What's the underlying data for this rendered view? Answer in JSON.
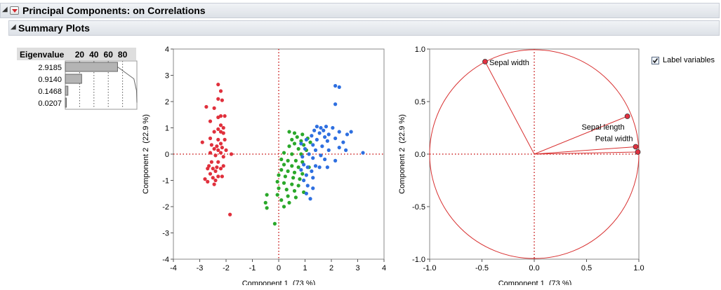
{
  "report": {
    "title": "Principal Components: on Correlations",
    "section_title": "Summary Plots"
  },
  "label_variables": {
    "label": "Label variables",
    "checked": true
  },
  "colors": {
    "setosa": "#e0303c",
    "versicolor": "#2aa82a",
    "virginica": "#2e6fe0",
    "refline": "#cc2222",
    "circle": "#d83030"
  },
  "chart_data": [
    {
      "type": "bar",
      "name": "eigenvalue-table",
      "header": "Eigenvalue",
      "scale_ticks": [
        "20",
        "40",
        "60",
        "80"
      ],
      "eigenvalues": [
        "2.9185",
        "0.9140",
        "0.1468",
        "0.0207"
      ],
      "percent": [
        72.96,
        22.85,
        3.67,
        0.52
      ],
      "cumulative_percent": [
        72.96,
        95.81,
        99.48,
        100
      ]
    },
    {
      "type": "scatter",
      "name": "score-plot",
      "xlabel": "Component 1  (73 %)",
      "ylabel": "Component 2  (22.9 %)",
      "xlim": [
        -4,
        4
      ],
      "ylim": [
        -4,
        4
      ],
      "xticks": [
        "-4",
        "-3",
        "-2",
        "-1",
        "0",
        "1",
        "2",
        "3",
        "4"
      ],
      "yticks": [
        "4",
        "3",
        "2",
        "1",
        "0",
        "-1",
        "-2",
        "-3",
        "-4"
      ],
      "series": [
        {
          "color": "setosa",
          "points": [
            [
              -2.3,
              2.65
            ],
            [
              -2.2,
              2.4
            ],
            [
              -2.3,
              2.1
            ],
            [
              -2.15,
              2.05
            ],
            [
              -2.75,
              1.8
            ],
            [
              -2.45,
              1.75
            ],
            [
              -2.2,
              1.45
            ],
            [
              -2.05,
              1.45
            ],
            [
              -2.3,
              1.4
            ],
            [
              -2.6,
              1.25
            ],
            [
              -2.2,
              1.1
            ],
            [
              -2.1,
              1.0
            ],
            [
              -2.3,
              0.95
            ],
            [
              -2.45,
              0.85
            ],
            [
              -2.2,
              0.85
            ],
            [
              -2.1,
              0.8
            ],
            [
              -2.6,
              0.6
            ],
            [
              -2.3,
              0.55
            ],
            [
              -2.05,
              0.55
            ],
            [
              -2.9,
              0.45
            ],
            [
              -2.55,
              0.35
            ],
            [
              -2.2,
              0.4
            ],
            [
              -2.35,
              0.3
            ],
            [
              -2.15,
              0.25
            ],
            [
              -2.45,
              0.2
            ],
            [
              -2.3,
              0.15
            ],
            [
              -2.0,
              0.15
            ],
            [
              -2.6,
              0.05
            ],
            [
              -2.2,
              0.05
            ],
            [
              -1.8,
              0.0
            ],
            [
              -2.4,
              -0.05
            ],
            [
              -2.1,
              -0.1
            ],
            [
              -2.55,
              -0.3
            ],
            [
              -2.3,
              -0.3
            ],
            [
              -2.65,
              -0.45
            ],
            [
              -2.35,
              -0.5
            ],
            [
              -2.1,
              -0.45
            ],
            [
              -2.7,
              -0.55
            ],
            [
              -2.5,
              -0.55
            ],
            [
              -2.2,
              -0.55
            ],
            [
              -2.4,
              -0.65
            ],
            [
              -2.6,
              -0.75
            ],
            [
              -2.3,
              -0.85
            ],
            [
              -2.15,
              -0.85
            ],
            [
              -2.5,
              -0.9
            ],
            [
              -2.8,
              -0.95
            ],
            [
              -2.4,
              -1.0
            ],
            [
              -2.7,
              -1.05
            ],
            [
              -2.45,
              -1.15
            ],
            [
              -1.85,
              -2.3
            ]
          ]
        },
        {
          "color": "versicolor",
          "points": [
            [
              0.4,
              0.85
            ],
            [
              0.6,
              0.8
            ],
            [
              0.9,
              0.75
            ],
            [
              0.7,
              0.65
            ],
            [
              1.1,
              0.6
            ],
            [
              0.5,
              0.55
            ],
            [
              0.85,
              0.5
            ],
            [
              1.2,
              0.45
            ],
            [
              0.6,
              0.4
            ],
            [
              0.95,
              0.35
            ],
            [
              0.4,
              0.3
            ],
            [
              0.75,
              0.2
            ],
            [
              1.05,
              0.15
            ],
            [
              0.2,
              0.05
            ],
            [
              0.5,
              0.0
            ],
            [
              0.85,
              0.0
            ],
            [
              0.1,
              -0.2
            ],
            [
              0.35,
              -0.25
            ],
            [
              0.65,
              -0.25
            ],
            [
              0.9,
              -0.3
            ],
            [
              0.2,
              -0.4
            ],
            [
              0.5,
              -0.45
            ],
            [
              0.75,
              -0.5
            ],
            [
              1.15,
              -0.5
            ],
            [
              0.1,
              -0.6
            ],
            [
              0.35,
              -0.65
            ],
            [
              0.6,
              -0.7
            ],
            [
              0.9,
              -0.75
            ],
            [
              0.0,
              -0.8
            ],
            [
              0.25,
              -0.85
            ],
            [
              0.55,
              -0.9
            ],
            [
              0.8,
              -0.95
            ],
            [
              -0.05,
              -1.05
            ],
            [
              0.2,
              -1.1
            ],
            [
              0.5,
              -1.15
            ],
            [
              0.75,
              -1.2
            ],
            [
              0.0,
              -1.3
            ],
            [
              0.3,
              -1.35
            ],
            [
              0.6,
              -1.4
            ],
            [
              0.95,
              -1.45
            ],
            [
              -0.45,
              -1.55
            ],
            [
              -0.05,
              -1.55
            ],
            [
              0.35,
              -1.6
            ],
            [
              0.65,
              -1.65
            ],
            [
              0.1,
              -1.75
            ],
            [
              0.4,
              -1.85
            ],
            [
              -0.5,
              -1.85
            ],
            [
              -0.45,
              -2.05
            ],
            [
              0.2,
              -2.0
            ],
            [
              -0.15,
              -2.65
            ]
          ]
        },
        {
          "color": "virginica",
          "points": [
            [
              2.15,
              2.6
            ],
            [
              2.3,
              2.55
            ],
            [
              2.15,
              1.9
            ],
            [
              1.45,
              1.05
            ],
            [
              1.6,
              1.0
            ],
            [
              1.8,
              1.05
            ],
            [
              2.05,
              1.0
            ],
            [
              1.35,
              0.9
            ],
            [
              1.7,
              0.9
            ],
            [
              2.3,
              0.85
            ],
            [
              2.75,
              0.85
            ],
            [
              1.55,
              0.8
            ],
            [
              1.9,
              0.75
            ],
            [
              2.6,
              0.75
            ],
            [
              1.25,
              0.7
            ],
            [
              1.75,
              0.65
            ],
            [
              2.15,
              0.6
            ],
            [
              1.05,
              0.55
            ],
            [
              1.45,
              0.55
            ],
            [
              1.85,
              0.5
            ],
            [
              2.45,
              0.45
            ],
            [
              0.85,
              0.4
            ],
            [
              1.3,
              0.35
            ],
            [
              1.65,
              0.3
            ],
            [
              2.3,
              0.25
            ],
            [
              1.0,
              0.2
            ],
            [
              1.4,
              0.15
            ],
            [
              1.9,
              0.15
            ],
            [
              2.55,
              0.15
            ],
            [
              3.2,
              0.05
            ],
            [
              1.15,
              0.0
            ],
            [
              1.6,
              -0.05
            ],
            [
              0.9,
              -0.1
            ],
            [
              1.3,
              -0.15
            ],
            [
              1.75,
              -0.2
            ],
            [
              2.15,
              -0.25
            ],
            [
              0.95,
              -0.4
            ],
            [
              1.4,
              -0.45
            ],
            [
              1.1,
              -0.5
            ],
            [
              1.55,
              -0.5
            ],
            [
              1.85,
              -0.5
            ],
            [
              0.85,
              -0.6
            ],
            [
              1.25,
              -0.65
            ],
            [
              1.05,
              -0.8
            ],
            [
              1.3,
              -0.9
            ],
            [
              0.95,
              -1.0
            ],
            [
              1.1,
              -1.2
            ],
            [
              1.3,
              -1.3
            ],
            [
              1.05,
              -1.5
            ],
            [
              1.2,
              -1.7
            ]
          ]
        }
      ]
    },
    {
      "type": "scatter",
      "name": "loading-plot",
      "xlabel": "Component 1  (73 %)",
      "ylabel": "Component 2  (22.9 %)",
      "xlim": [
        -1,
        1
      ],
      "ylim": [
        -1,
        1
      ],
      "xticks": [
        "-1.0",
        "-0.5",
        "0.0",
        "0.5",
        "1.0"
      ],
      "yticks": [
        "1.0",
        "0.5",
        "0.0",
        "-0.5",
        "-1.0"
      ],
      "loadings": [
        {
          "label": "Sepal width",
          "x": -0.47,
          "y": 0.88
        },
        {
          "label": "Sepal length",
          "x": 0.89,
          "y": 0.36
        },
        {
          "label": "Petal width",
          "x": 0.97,
          "y": 0.07
        },
        {
          "label": "",
          "x": 0.99,
          "y": 0.02
        }
      ]
    }
  ]
}
